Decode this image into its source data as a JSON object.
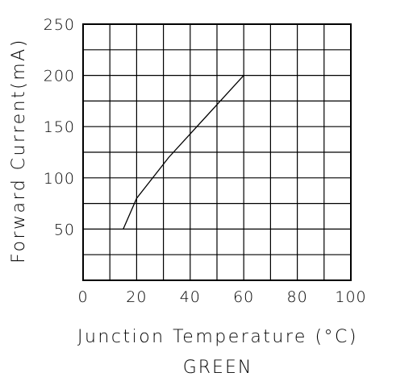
{
  "chart_data": {
    "type": "line",
    "title": "",
    "subtitle": "GREEN",
    "xlabel": "Junction Temperature (°C)",
    "ylabel": "Forward Current(mA)",
    "xlim": [
      0,
      100
    ],
    "ylim": [
      0,
      250
    ],
    "x_ticks": [
      0,
      20,
      40,
      60,
      80,
      100
    ],
    "x_tick_labels": [
      "0",
      "20",
      "40",
      "60",
      "80",
      "100"
    ],
    "y_ticks": [
      50,
      100,
      150,
      200,
      250
    ],
    "y_tick_labels": [
      "50",
      "100",
      "150",
      "200",
      "250"
    ],
    "x_grid_step": 10,
    "y_grid_step": 25,
    "grid": true,
    "legend": "none",
    "series": [
      {
        "x": [
          15,
          20,
          32,
          60
        ],
        "y": [
          50,
          80,
          120,
          200
        ]
      }
    ]
  }
}
